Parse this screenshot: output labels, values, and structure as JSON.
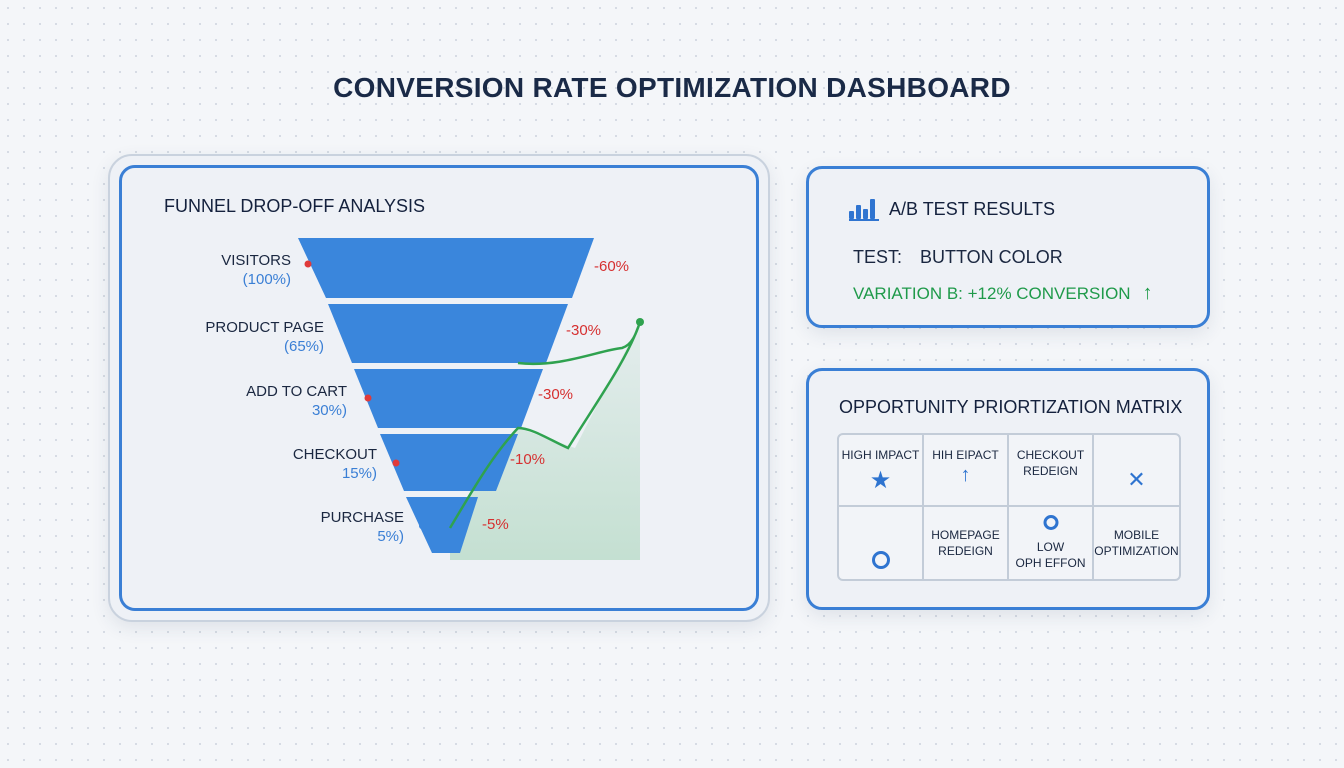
{
  "page": {
    "title": "CONVERSION RATE OPTIMIZATION DASHBOARD"
  },
  "funnel": {
    "title": "FUNNEL DROP-OFF ANALYSIS",
    "stages": [
      {
        "name": "VISITORS",
        "pct": "(100%)",
        "drop": "-60%"
      },
      {
        "name": "PRODUCT PAGE",
        "pct": "(65%)",
        "drop": "-30%"
      },
      {
        "name": "ADD TO CART",
        "pct": "30%)",
        "drop": "-30%"
      },
      {
        "name": "CHECKOUT",
        "pct": "15%)",
        "drop": "-10%"
      },
      {
        "name": "PURCHASE",
        "pct": "5%)",
        "drop": "-5%"
      }
    ],
    "colors": {
      "funnel": "#3a86dc",
      "drop": "#d63030",
      "trend": "#2fa24f",
      "marker": "#e03a3a"
    }
  },
  "ab_test": {
    "title": "A/B TEST RESULTS",
    "icon": "bar-chart-icon",
    "test_key": "TEST:",
    "test_value": "BUTTON COLOR",
    "variation": "VARIATION B: +12% CONVERSION",
    "variation_icon": "up-arrow-icon"
  },
  "matrix": {
    "title": "OPPORTUNITY PRIORTIZATION MATRIX",
    "cells": {
      "c1": "HIGH IMPACT",
      "c2": "HIH EIPACT",
      "c3_line1": "CHECKOUT",
      "c3_line2": "REDEIGN",
      "c6_line1": "HOMEPAGE",
      "c6_line2": "REDEIGN",
      "c7_line1": "LOW",
      "c7_line2": "OPH EFFON",
      "c8_line1": "MOBILE",
      "c8_line2": "OPTIMIZATION"
    },
    "icons": [
      "star-icon",
      "up-arrow-icon",
      "close-icon",
      "circle-icon",
      "circle-icon"
    ]
  }
}
